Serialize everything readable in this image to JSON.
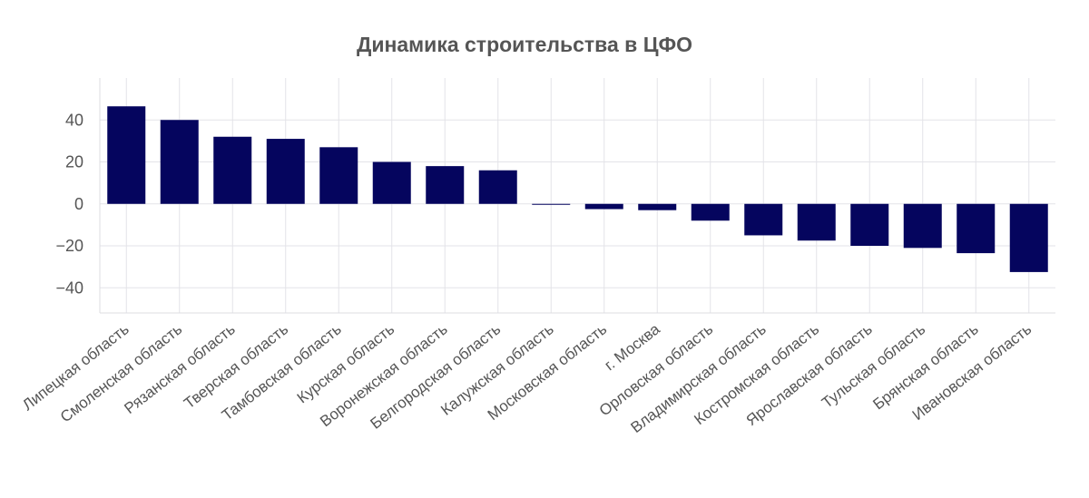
{
  "chart_data": {
    "type": "bar",
    "title": "Динамика строительства в ЦФО",
    "xlabel": "",
    "ylabel": "",
    "ylim": [
      -52,
      60
    ],
    "yticks": [
      -40,
      -20,
      0,
      20,
      40
    ],
    "grid": true,
    "bar_color": "#05055e",
    "categories": [
      "Липецкая область",
      "Смоленская область",
      "Рязанская область",
      "Тверская область",
      "Тамбовская область",
      "Курская область",
      "Воронежская область",
      "Белгородская область",
      "Калужская область",
      "Московская область",
      "г. Москва",
      "Орловская область",
      "Владимирская область",
      "Костромская область",
      "Ярославская область",
      "Тульская область",
      "Брянская область",
      "Ивановская область"
    ],
    "values": [
      46.5,
      40,
      32,
      31,
      27,
      20,
      18,
      16,
      -0.3,
      -2.5,
      -3,
      -8,
      -15,
      -17.5,
      -20,
      -21,
      -23.5,
      -32.5
    ]
  }
}
